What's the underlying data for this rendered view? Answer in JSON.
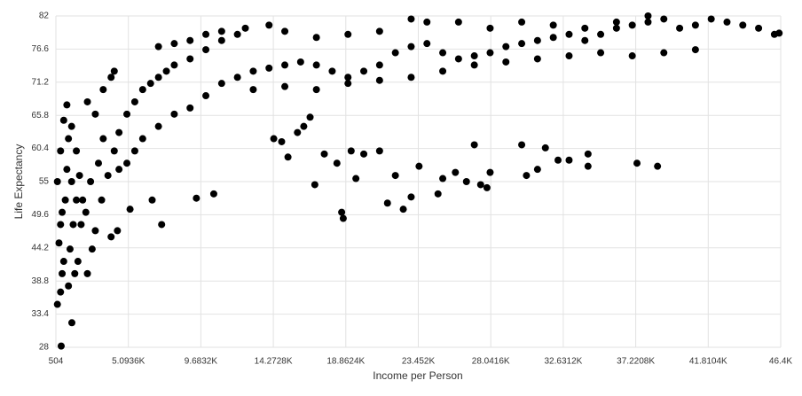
{
  "chart_data": {
    "type": "scatter",
    "x_label": "Income per Person",
    "y_label": "Life Expectancy",
    "color": "#000000",
    "grid": true,
    "xlim": [
      504,
      46400
    ],
    "ylim": [
      28,
      82
    ],
    "xticks": [
      504,
      {
        "value": 5093.6,
        "label": "5.0936K"
      },
      {
        "value": 9683.2,
        "label": "9.6832K"
      },
      {
        "value": 14272.8,
        "label": "14.2728K"
      },
      {
        "value": 18862.4,
        "label": "18.8624K"
      },
      {
        "value": 23452,
        "label": "23.452K"
      },
      {
        "value": 28041.6,
        "label": "28.0416K"
      },
      {
        "value": 32631.2,
        "label": "32.6312K"
      },
      {
        "value": 37220.8,
        "label": "37.2208K"
      },
      {
        "value": 41810.4,
        "label": "41.8104K"
      },
      {
        "value": 46400,
        "label": "46.4K"
      }
    ],
    "yticks": [
      28,
      33.4,
      38.8,
      44.2,
      49.6,
      55,
      60.4,
      65.8,
      71.2,
      76.6,
      82
    ],
    "x": [
      840,
      1515,
      600,
      800,
      900,
      1000,
      700,
      800,
      900,
      1100,
      600,
      1200,
      800,
      1300,
      1000,
      1200,
      1500,
      1800,
      2000,
      2200,
      1600,
      1400,
      1900,
      2500,
      2800,
      3000,
      2400,
      2700,
      3200,
      3500,
      3000,
      2500,
      3500,
      4000,
      4200,
      1500,
      1800,
      2100,
      1300,
      1700,
      3400,
      3800,
      4200,
      4500,
      5000,
      5500,
      6000,
      6500,
      7000,
      7500,
      8000,
      9000,
      10000,
      11000,
      12000,
      4500,
      5000,
      5500,
      6000,
      7000,
      8000,
      9000,
      10000,
      11000,
      12000,
      13000,
      14000,
      15000,
      16000,
      17000,
      18000,
      19000,
      20000,
      21000,
      22000,
      23000,
      24000,
      25000,
      26000,
      27000,
      28000,
      29000,
      30000,
      31000,
      32000,
      33000,
      34000,
      35000,
      36000,
      37000,
      38000,
      39000,
      40000,
      41000,
      42000,
      43000,
      44000,
      45000,
      46000,
      46300,
      7000,
      8000,
      9000,
      10000,
      11000,
      12500,
      14000,
      15000,
      17000,
      19000,
      21000,
      23000,
      24000,
      26000,
      28000,
      30000,
      32000,
      34000,
      36000,
      38000,
      13000,
      15000,
      17000,
      19000,
      21000,
      23000,
      25000,
      27000,
      29000,
      31000,
      33000,
      35000,
      37000,
      39000,
      41000,
      4000,
      4400,
      5200,
      6600,
      7200,
      9400,
      10500,
      14300,
      14800,
      15200,
      15800,
      16200,
      16600,
      16900,
      17500,
      18300,
      18600,
      18700,
      19200,
      19500,
      20000,
      21000,
      21500,
      22000,
      22500,
      23000,
      23500,
      24700,
      25000,
      25800,
      26500,
      27000,
      27400,
      27800,
      28000,
      30000,
      30300,
      31000,
      31500,
      32300,
      33000,
      34200,
      34200,
      37300,
      38600
    ],
    "y": [
      28.2,
      32.0,
      35,
      37,
      40,
      42,
      45,
      48,
      50,
      52,
      55,
      57,
      60,
      62,
      65,
      67.5,
      64,
      60,
      56,
      52,
      48,
      44,
      42,
      40,
      44,
      47,
      50,
      55,
      58,
      62,
      66,
      68,
      70,
      72,
      73,
      55,
      52,
      48,
      38,
      40,
      52,
      56,
      60,
      63,
      66,
      68,
      70,
      71,
      72,
      73,
      74,
      75,
      76.5,
      78,
      79,
      57,
      58,
      60,
      62,
      64,
      66,
      67,
      69,
      71,
      72,
      73,
      73.5,
      74,
      74.5,
      74,
      73,
      72,
      73,
      74,
      76,
      77,
      77.5,
      76,
      75,
      75.5,
      76,
      77,
      77.5,
      78,
      78.5,
      79,
      78,
      79,
      80,
      80.5,
      81,
      81.5,
      80,
      80.5,
      81.5,
      81,
      80.5,
      80,
      79,
      79.2,
      77,
      77.5,
      78,
      79,
      79.5,
      80,
      80.5,
      79.5,
      78.5,
      79,
      79.5,
      81.5,
      81,
      81,
      80,
      81,
      80.5,
      80,
      81,
      82,
      70,
      70.5,
      70,
      71,
      71.5,
      72,
      73,
      74,
      74.5,
      75,
      75.5,
      76,
      75.5,
      76,
      76.5,
      46,
      47,
      50.5,
      52,
      48,
      52.3,
      53,
      62,
      61.5,
      59,
      63,
      64,
      65.5,
      54.5,
      59.5,
      58,
      50,
      49,
      60,
      55.5,
      59.5,
      60,
      51.5,
      56,
      50.5,
      52.5,
      57.5,
      53,
      55.5,
      56.5,
      55,
      61,
      54.5,
      54,
      56.5,
      61,
      56,
      57,
      60.5,
      58.5,
      58.5,
      57.5,
      59.5,
      58,
      57.5
    ]
  }
}
